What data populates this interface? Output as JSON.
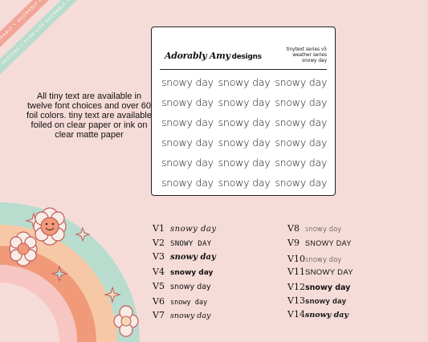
{
  "ribbons": [
    "plan life adorably • adorably amy designs • plan life adorably • adorably amy designs",
    "adorably amy designs • plan life adorably • adorably amy designs • plan life"
  ],
  "description": "All tiny text are available in twelve font choices and over 60 foil colors.  tiny text are available foiled on clear paper or ink on clear matte paper",
  "sheet": {
    "brand": "Adorably Amy",
    "brand_suffix": "designs",
    "series_line1": "tinytext series v5",
    "series_line2": "weather series",
    "series_line3": "snowy day",
    "sticker_text": "snowy day",
    "rows": 6,
    "columns": 3
  },
  "variants": [
    {
      "label": "V1",
      "text": "snowy day"
    },
    {
      "label": "V2",
      "text": "SNOWY DAY"
    },
    {
      "label": "V3",
      "text": "snowy day"
    },
    {
      "label": "V4",
      "text": "snowy day"
    },
    {
      "label": "V5",
      "text": "snowy day"
    },
    {
      "label": "V6",
      "text": "snowy day"
    },
    {
      "label": "V7",
      "text": "snowy day"
    },
    {
      "label": "V8",
      "text": "snowy day"
    },
    {
      "label": "V9",
      "text": "SNOWY DAY"
    },
    {
      "label": "V10",
      "text": "snowy day"
    },
    {
      "label": "V11",
      "text": "SNOWY DAY"
    },
    {
      "label": "V12",
      "text": "snowy day"
    },
    {
      "label": "V13",
      "text": "snowy day"
    },
    {
      "label": "V14",
      "text": "snowy day"
    }
  ],
  "colors": {
    "background": "#f6dcd9",
    "ribbon_pink": "#f2a597",
    "ribbon_mint": "#b9dccf",
    "rainbow_mint": "#b8dccd",
    "rainbow_peach": "#f6c8a6",
    "rainbow_orange": "#f19a7a",
    "rainbow_pink": "#f7c6c3"
  },
  "icons": [
    "sparkle-star-icon",
    "flower-icon",
    "smiley-flower-icon"
  ]
}
